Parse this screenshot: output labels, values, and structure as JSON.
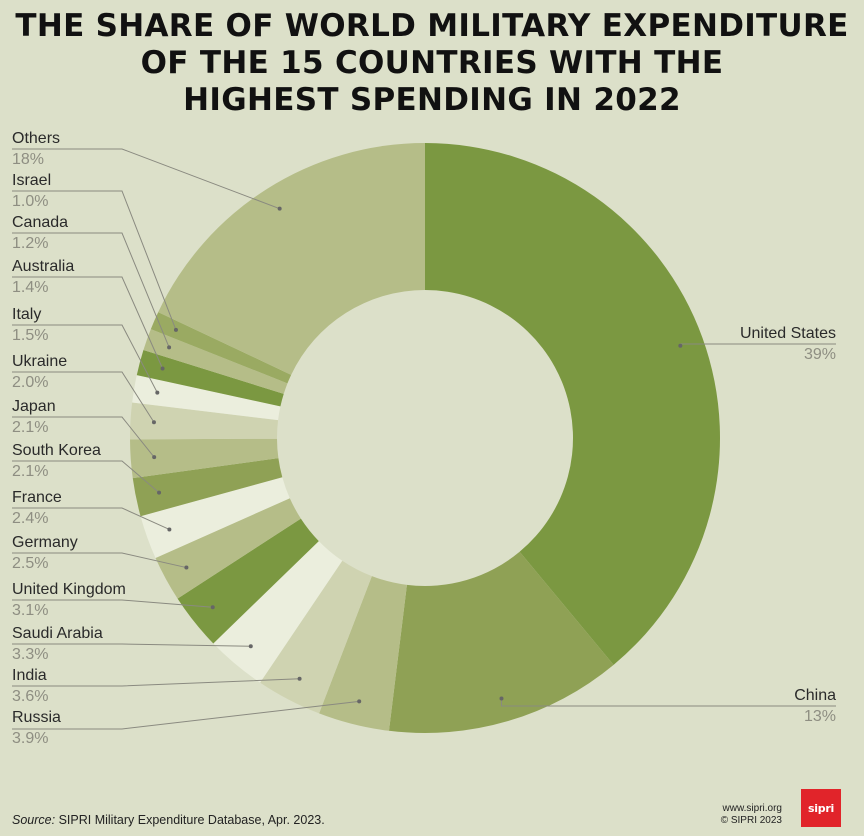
{
  "chart_data": {
    "type": "pie",
    "title_lines": [
      "THE SHARE OF WORLD MILITARY EXPENDITURE",
      "OF THE 15 COUNTRIES WITH THE",
      "HIGHEST SPENDING IN 2022"
    ],
    "donut": true,
    "slices": [
      {
        "name": "United States",
        "value": 39,
        "label": "39%",
        "color": "#7b9841"
      },
      {
        "name": "China",
        "value": 13,
        "label": "13%",
        "color": "#8fa155"
      },
      {
        "name": "Russia",
        "value": 3.9,
        "label": "3.9%",
        "color": "#b5bd88"
      },
      {
        "name": "India",
        "value": 3.6,
        "label": "3.6%",
        "color": "#cfd3b1"
      },
      {
        "name": "Saudi Arabia",
        "value": 3.3,
        "label": "3.3%",
        "color": "#ebeedd"
      },
      {
        "name": "United Kingdom",
        "value": 3.1,
        "label": "3.1%",
        "color": "#7b9841"
      },
      {
        "name": "Germany",
        "value": 2.5,
        "label": "2.5%",
        "color": "#b5bd88"
      },
      {
        "name": "France",
        "value": 2.4,
        "label": "2.4%",
        "color": "#ebeedd"
      },
      {
        "name": "South Korea",
        "value": 2.1,
        "label": "2.1%",
        "color": "#8fa155"
      },
      {
        "name": "Japan",
        "value": 2.1,
        "label": "2.1%",
        "color": "#b5bd88"
      },
      {
        "name": "Ukraine",
        "value": 2.0,
        "label": "2.0%",
        "color": "#cfd3b1"
      },
      {
        "name": "Italy",
        "value": 1.5,
        "label": "1.5%",
        "color": "#ebeedd"
      },
      {
        "name": "Australia",
        "value": 1.4,
        "label": "1.4%",
        "color": "#7b9841"
      },
      {
        "name": "Canada",
        "value": 1.2,
        "label": "1.2%",
        "color": "#b5bd88"
      },
      {
        "name": "Israel",
        "value": 1.0,
        "label": "1.0%",
        "color": "#9aaa62"
      },
      {
        "name": "Others",
        "value": 18,
        "label": "18%",
        "color": "#b5bd88"
      }
    ]
  },
  "footer": {
    "source_prefix": "Source:",
    "source_text": "SIPRI Military Expenditure Database, Apr. 2023.",
    "website": "www.sipri.org",
    "copyright": "© SIPRI 2023",
    "logo_text": "sipri"
  },
  "colors": {
    "background": "#dce0c9",
    "donut_hole": "#dce0c9",
    "leader_line": "#8a8a80",
    "logo": "#e1242a"
  }
}
